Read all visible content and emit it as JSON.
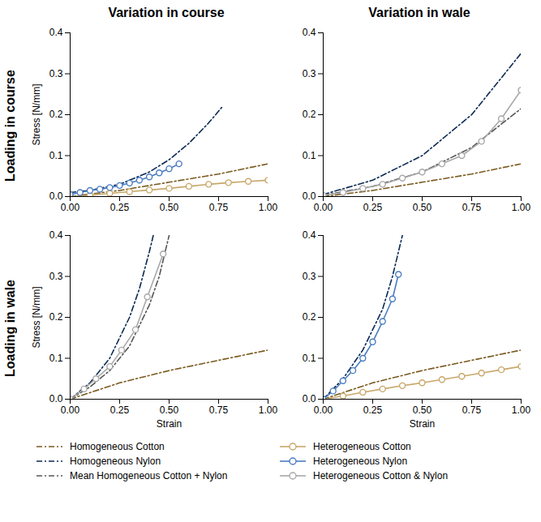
{
  "column_titles": [
    "Variation in course",
    "Variation in wale"
  ],
  "row_titles": [
    "Loading in course",
    "Loading in wale"
  ],
  "legend": "bottom",
  "chart_data": [
    {
      "type": "line",
      "y_label": "Stress [N/mm]",
      "xlim": [
        0,
        1
      ],
      "xticks": [
        {
          "value": 0,
          "label": "0.00"
        },
        0.25,
        {
          "value": 0.5,
          "label": "0.50"
        },
        0.75,
        {
          "value": 1,
          "label": "1.00"
        }
      ],
      "ylim": [
        0,
        0.4
      ],
      "yticks": [
        {
          "value": 0,
          "label": "0.0"
        },
        0.1,
        0.2,
        0.3,
        0.4
      ],
      "series": [
        {
          "name": "Homogeneous Cotton",
          "color": "#7a5a1e",
          "line_style": "dashdot",
          "x": [
            0,
            0.25,
            0.5,
            0.75,
            1
          ],
          "values": [
            0,
            0.015,
            0.035,
            0.055,
            0.08
          ]
        },
        {
          "name": "Homogeneous Nylon",
          "color": "#0b2a55",
          "line_style": "dashdot",
          "x": [
            0,
            0.1,
            0.25,
            0.4,
            0.5,
            0.6,
            0.7,
            0.77
          ],
          "values": [
            0.01,
            0.015,
            0.03,
            0.06,
            0.09,
            0.13,
            0.18,
            0.22
          ]
        },
        {
          "name": "Heterogeneous Cotton",
          "color": "#c8a86a",
          "line_style": "solid",
          "marker": "circle",
          "x": [
            0,
            0.1,
            0.2,
            0.3,
            0.4,
            0.5,
            0.6,
            0.7,
            0.8,
            0.9,
            1
          ],
          "values": [
            0,
            0.003,
            0.008,
            0.012,
            0.016,
            0.02,
            0.025,
            0.03,
            0.034,
            0.037,
            0.04
          ]
        },
        {
          "name": "Heterogeneous Nylon",
          "color": "#4a7cc0",
          "line_style": "solid",
          "marker": "circle",
          "x": [
            0,
            0.05,
            0.1,
            0.15,
            0.2,
            0.25,
            0.3,
            0.35,
            0.4,
            0.45,
            0.5,
            0.55
          ],
          "values": [
            0.005,
            0.01,
            0.015,
            0.018,
            0.022,
            0.027,
            0.033,
            0.04,
            0.048,
            0.058,
            0.068,
            0.08
          ]
        }
      ]
    },
    {
      "type": "line",
      "xlim": [
        0,
        1
      ],
      "xticks": [
        {
          "value": 0,
          "label": "0.00"
        },
        0.25,
        {
          "value": 0.5,
          "label": "0.50"
        },
        0.75,
        {
          "value": 1,
          "label": "1.00"
        }
      ],
      "ylim": [
        0,
        0.4
      ],
      "yticks": [
        {
          "value": 0,
          "label": "0.0"
        },
        0.1,
        0.2,
        0.3,
        0.4
      ],
      "series": [
        {
          "name": "Homogeneous Cotton",
          "color": "#7a5a1e",
          "line_style": "dashdot",
          "x": [
            0,
            0.25,
            0.5,
            0.75,
            1
          ],
          "values": [
            0,
            0.015,
            0.035,
            0.055,
            0.08
          ]
        },
        {
          "name": "Homogeneous Nylon",
          "color": "#0b2a55",
          "line_style": "dashdot",
          "x": [
            0,
            0.25,
            0.5,
            0.75,
            1
          ],
          "values": [
            0.005,
            0.04,
            0.1,
            0.2,
            0.35
          ]
        },
        {
          "name": "Mean Homogeneous Cotton + Nylon",
          "color": "#555555",
          "line_style": "dashdot",
          "x": [
            0,
            0.25,
            0.5,
            0.75,
            1
          ],
          "values": [
            0.003,
            0.025,
            0.06,
            0.12,
            0.215
          ]
        },
        {
          "name": "Heterogeneous Cotton & Nylon",
          "color": "#a8a8a8",
          "line_style": "solid",
          "marker": "circle",
          "x": [
            0,
            0.1,
            0.2,
            0.3,
            0.4,
            0.5,
            0.6,
            0.7,
            0.8,
            0.9,
            1
          ],
          "values": [
            0.003,
            0.01,
            0.02,
            0.03,
            0.045,
            0.06,
            0.08,
            0.1,
            0.135,
            0.19,
            0.26
          ]
        }
      ]
    },
    {
      "type": "line",
      "x_label": "Strain",
      "y_label": "Stress [N/mm]",
      "xlim": [
        0,
        1
      ],
      "xticks": [
        {
          "value": 0,
          "label": "0.00"
        },
        0.25,
        {
          "value": 0.5,
          "label": "0.50"
        },
        0.75,
        {
          "value": 1,
          "label": "1.00"
        }
      ],
      "ylim": [
        0,
        0.4
      ],
      "yticks": [
        {
          "value": 0,
          "label": "0.0"
        },
        0.1,
        0.2,
        0.3,
        0.4
      ],
      "series": [
        {
          "name": "Homogeneous Cotton",
          "color": "#7a5a1e",
          "line_style": "dashdot",
          "x": [
            0,
            0.25,
            0.5,
            0.75,
            1
          ],
          "values": [
            0,
            0.04,
            0.07,
            0.095,
            0.12
          ]
        },
        {
          "name": "Homogeneous Nylon",
          "color": "#0b2a55",
          "line_style": "dashdot",
          "x": [
            0,
            0.1,
            0.2,
            0.3,
            0.35,
            0.4,
            0.42
          ],
          "values": [
            0,
            0.04,
            0.1,
            0.2,
            0.27,
            0.36,
            0.4
          ]
        },
        {
          "name": "Mean Homogeneous Cotton + Nylon",
          "color": "#555555",
          "line_style": "dashdot",
          "x": [
            0,
            0.1,
            0.2,
            0.3,
            0.4,
            0.45,
            0.5
          ],
          "values": [
            0,
            0.03,
            0.07,
            0.13,
            0.23,
            0.3,
            0.4
          ]
        },
        {
          "name": "Heterogeneous Cotton & Nylon",
          "color": "#a8a8a8",
          "line_style": "solid",
          "marker": "circle",
          "x": [
            0,
            0.07,
            0.13,
            0.2,
            0.26,
            0.33,
            0.39,
            0.47
          ],
          "values": [
            0,
            0.025,
            0.05,
            0.08,
            0.12,
            0.17,
            0.25,
            0.355
          ]
        }
      ]
    },
    {
      "type": "line",
      "x_label": "Strain",
      "xlim": [
        0,
        1
      ],
      "xticks": [
        {
          "value": 0,
          "label": "0.00"
        },
        0.25,
        {
          "value": 0.5,
          "label": "0.50"
        },
        0.75,
        {
          "value": 1,
          "label": "1.00"
        }
      ],
      "ylim": [
        0,
        0.4
      ],
      "yticks": [
        {
          "value": 0,
          "label": "0.0"
        },
        0.1,
        0.2,
        0.3,
        0.4
      ],
      "series": [
        {
          "name": "Homogeneous Cotton",
          "color": "#7a5a1e",
          "line_style": "dashdot",
          "x": [
            0,
            0.25,
            0.5,
            0.75,
            1
          ],
          "values": [
            0,
            0.04,
            0.07,
            0.095,
            0.12
          ]
        },
        {
          "name": "Homogeneous Nylon",
          "color": "#0b2a55",
          "line_style": "dashdot",
          "x": [
            0,
            0.1,
            0.2,
            0.3,
            0.35,
            0.4
          ],
          "values": [
            0,
            0.05,
            0.12,
            0.22,
            0.3,
            0.4
          ]
        },
        {
          "name": "Heterogeneous Cotton",
          "color": "#c8a86a",
          "line_style": "solid",
          "marker": "circle",
          "x": [
            0,
            0.1,
            0.2,
            0.3,
            0.4,
            0.5,
            0.6,
            0.7,
            0.8,
            0.9,
            1
          ],
          "values": [
            0,
            0.008,
            0.017,
            0.025,
            0.033,
            0.04,
            0.048,
            0.056,
            0.064,
            0.072,
            0.08
          ]
        },
        {
          "name": "Heterogeneous Nylon",
          "color": "#4a7cc0",
          "line_style": "solid",
          "marker": "circle",
          "x": [
            0,
            0.05,
            0.1,
            0.15,
            0.2,
            0.25,
            0.3,
            0.35,
            0.38
          ],
          "values": [
            0,
            0.02,
            0.045,
            0.07,
            0.1,
            0.14,
            0.19,
            0.245,
            0.305
          ]
        }
      ]
    }
  ]
}
